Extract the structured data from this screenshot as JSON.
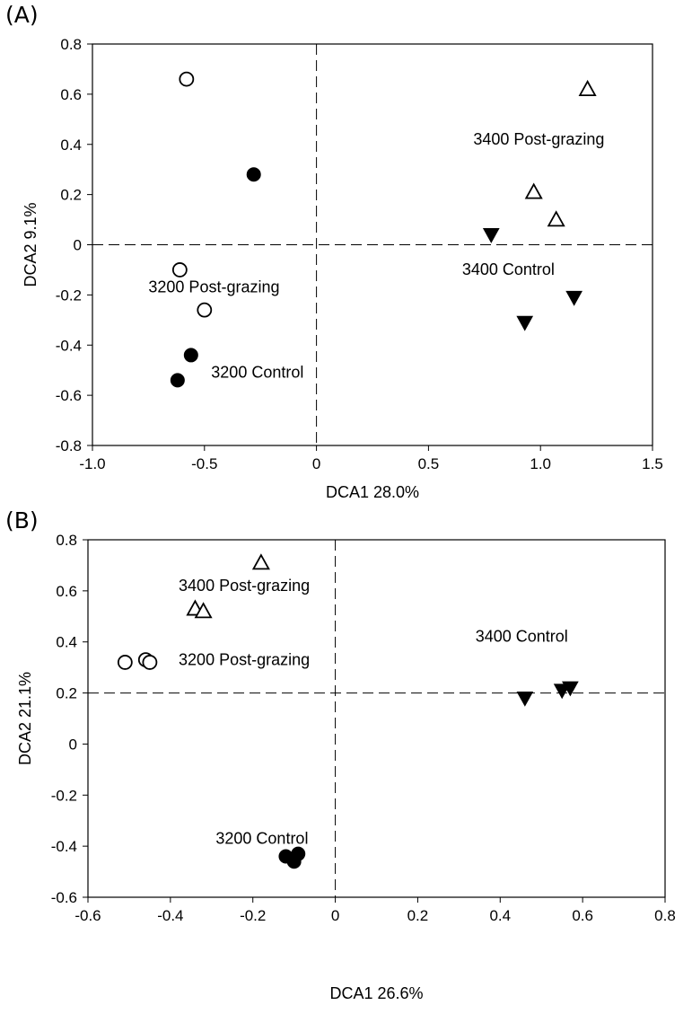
{
  "chart_data": [
    {
      "panel_label": "(A)",
      "type": "scatter",
      "xlabel": "DCA1 28.0%",
      "ylabel": "DCA2 9.1%",
      "xlim": [
        -1.0,
        1.5
      ],
      "ylim": [
        -0.8,
        0.8
      ],
      "xticks": [
        "-1.0",
        "-0.5",
        "0",
        "0.5",
        "1.0",
        "1.5"
      ],
      "xtick_values": [
        -1.0,
        -0.5,
        0,
        0.5,
        1.0,
        1.5
      ],
      "yticks": [
        "-0.8",
        "-0.6",
        "-0.4",
        "-0.2",
        "0",
        "0.2",
        "0.4",
        "0.6",
        "0.8"
      ],
      "ytick_values": [
        -0.8,
        -0.6,
        -0.4,
        -0.2,
        0,
        0.2,
        0.4,
        0.6,
        0.8
      ],
      "reference_lines": {
        "x": 0,
        "y": 0
      },
      "series": [
        {
          "marker": "open-circle",
          "points": [
            [
              -0.58,
              0.66
            ],
            [
              -0.61,
              -0.1
            ],
            [
              -0.5,
              -0.26
            ]
          ]
        },
        {
          "marker": "filled-circle",
          "points": [
            [
              -0.28,
              0.28
            ],
            [
              -0.56,
              -0.44
            ],
            [
              -0.62,
              -0.54
            ]
          ]
        },
        {
          "marker": "open-triangle-up",
          "points": [
            [
              1.21,
              0.62
            ],
            [
              0.97,
              0.21
            ],
            [
              1.07,
              0.1
            ]
          ]
        },
        {
          "marker": "filled-triangle-down",
          "points": [
            [
              0.78,
              0.04
            ],
            [
              1.15,
              -0.21
            ],
            [
              0.93,
              -0.31
            ]
          ]
        }
      ],
      "annotations": [
        {
          "text": "3400 Post-grazing",
          "x": 0.7,
          "y": 0.4
        },
        {
          "text": "3400 Control",
          "x": 0.65,
          "y": -0.12
        },
        {
          "text": "3200 Post-grazing",
          "x": -0.75,
          "y": -0.19
        },
        {
          "text": "3200 Control",
          "x": -0.47,
          "y": -0.53
        }
      ]
    },
    {
      "panel_label": "(B)",
      "type": "scatter",
      "xlabel": "DCA1 26.6%",
      "ylabel": "DCA2 21.1%",
      "xlim": [
        -0.6,
        0.8
      ],
      "ylim": [
        -0.6,
        0.8
      ],
      "xticks": [
        "-0.6",
        "-0.4",
        "-0.2",
        "0",
        "0.2",
        "0.4",
        "0.6",
        "0.8"
      ],
      "xtick_values": [
        -0.6,
        -0.4,
        -0.2,
        0,
        0.2,
        0.4,
        0.6,
        0.8
      ],
      "yticks": [
        "-0.6",
        "-0.4",
        "-0.2",
        "0",
        "0.2",
        "0.4",
        "0.6",
        "0.8"
      ],
      "ytick_values": [
        -0.6,
        -0.4,
        -0.2,
        0,
        0.2,
        0.4,
        0.6,
        0.8
      ],
      "reference_lines": {
        "x": 0,
        "y": 0.2
      },
      "series": [
        {
          "marker": "open-circle",
          "points": [
            [
              -0.51,
              0.32
            ],
            [
              -0.46,
              0.33
            ],
            [
              -0.45,
              0.32
            ]
          ]
        },
        {
          "marker": "filled-circle",
          "points": [
            [
              -0.12,
              -0.44
            ],
            [
              -0.1,
              -0.46
            ],
            [
              -0.09,
              -0.43
            ]
          ]
        },
        {
          "marker": "open-triangle-up",
          "points": [
            [
              -0.18,
              0.71
            ],
            [
              -0.34,
              0.53
            ],
            [
              -0.32,
              0.52
            ]
          ]
        },
        {
          "marker": "filled-triangle-down",
          "points": [
            [
              0.46,
              0.18
            ],
            [
              0.55,
              0.21
            ],
            [
              0.57,
              0.22
            ]
          ]
        }
      ],
      "annotations": [
        {
          "text": "3400 Post-grazing",
          "x": -0.38,
          "y": 0.6
        },
        {
          "text": "3400 Control",
          "x": 0.34,
          "y": 0.4
        },
        {
          "text": "3200 Post-grazing",
          "x": -0.38,
          "y": 0.31
        },
        {
          "text": "3200 Control",
          "x": -0.29,
          "y": -0.39
        }
      ]
    }
  ]
}
